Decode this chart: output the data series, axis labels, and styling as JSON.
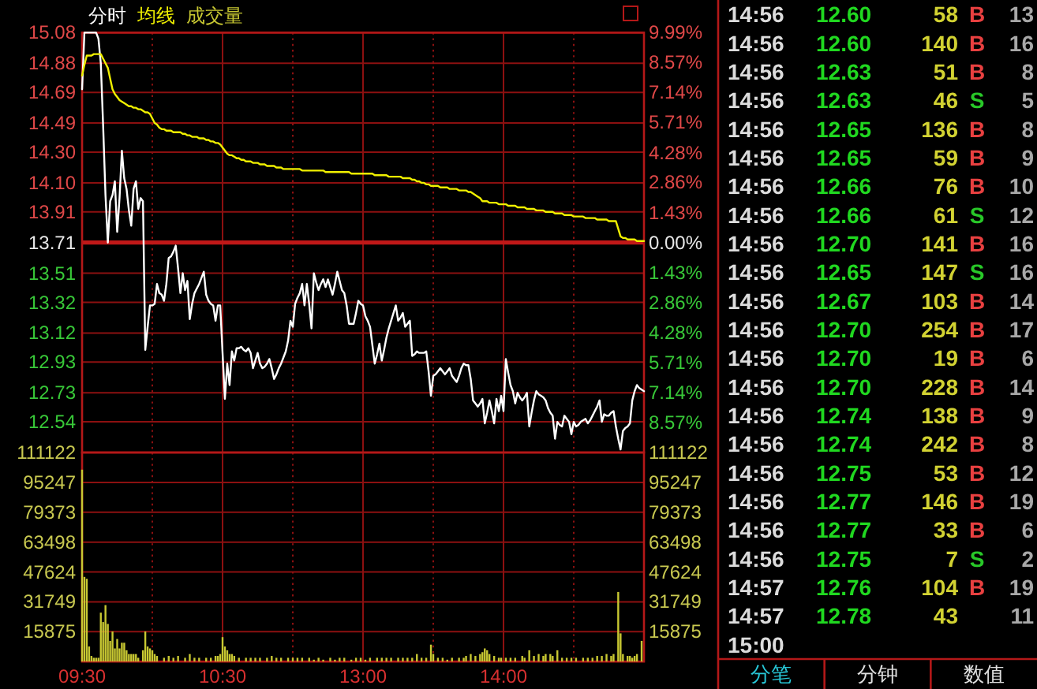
{
  "chart_data": [
    {
      "type": "line",
      "categories": [
        null,
        null,
        null,
        null,
        null,
        null,
        null,
        null,
        null,
        null,
        null,
        null,
        null,
        null,
        null,
        null,
        null,
        null,
        null,
        null,
        null,
        null,
        null,
        null,
        null,
        null,
        null,
        null,
        null,
        null,
        null,
        null,
        null,
        null,
        null,
        null,
        null,
        null,
        null,
        null,
        null,
        null,
        null,
        null,
        null,
        null,
        null,
        null,
        null,
        null,
        null,
        null,
        null,
        null,
        null,
        null,
        null,
        null,
        null,
        null,
        null,
        null,
        null,
        null,
        null,
        null,
        null,
        null,
        null,
        null,
        null,
        null,
        null,
        null,
        null,
        null,
        null,
        null,
        null,
        null,
        null,
        null,
        null,
        null,
        null,
        null,
        null,
        null,
        null,
        null,
        null,
        null,
        null,
        null,
        null,
        null,
        null,
        null,
        null,
        null,
        null,
        null,
        null,
        null,
        null,
        null,
        null,
        null,
        null,
        null,
        null,
        null,
        null,
        null,
        null,
        null,
        null,
        null,
        null,
        null,
        null,
        null,
        null,
        null,
        null,
        null,
        null,
        null,
        null,
        null,
        null,
        null,
        null,
        null,
        null,
        null,
        null,
        null,
        null,
        null,
        null,
        null,
        null,
        null,
        null,
        null,
        null,
        null,
        null,
        null,
        null,
        null,
        null,
        null,
        null,
        null,
        null,
        null,
        null,
        null,
        null,
        null,
        null,
        null,
        null,
        null,
        null,
        null,
        null,
        null,
        null,
        null,
        null,
        null,
        null,
        null,
        null,
        null,
        null,
        null,
        null,
        null,
        null,
        null,
        null,
        null,
        null,
        null,
        null,
        null,
        null,
        null,
        null,
        null,
        null,
        null,
        null,
        null,
        null,
        null,
        null,
        null,
        null,
        null,
        null,
        null,
        null,
        null,
        null,
        null,
        null,
        null,
        null,
        null,
        null,
        null,
        null,
        null,
        null,
        null,
        null,
        null,
        null,
        null,
        null,
        null,
        null,
        null,
        null,
        null,
        null,
        null,
        null,
        null,
        null,
        null,
        null,
        null,
        null,
        null,
        null
      ],
      "series": [
        {
          "name": "分时",
          "color": "#ffffff",
          "values": [
            14.71,
            15.08,
            15.08,
            15.08,
            15.08,
            15.08,
            15.08,
            15.04,
            14.88,
            14.47,
            14.02,
            13.71,
            13.98,
            14.02,
            14.11,
            13.78,
            14.0,
            14.31,
            14.13,
            14.06,
            13.92,
            13.82,
            14.06,
            14.11,
            13.93,
            14.0,
            13.98,
            13.01,
            13.16,
            13.3,
            13.3,
            13.31,
            13.44,
            13.38,
            13.37,
            13.33,
            13.44,
            13.61,
            13.62,
            13.65,
            13.69,
            13.54,
            13.38,
            13.51,
            13.4,
            13.46,
            13.21,
            13.31,
            13.38,
            13.41,
            13.44,
            13.48,
            13.52,
            13.37,
            13.33,
            13.31,
            13.3,
            13.2,
            13.3,
            13.3,
            12.99,
            12.69,
            12.92,
            12.78,
            13.0,
            12.94,
            13.02,
            13.02,
            13.03,
            13.01,
            13.0,
            13.02,
            12.99,
            12.89,
            12.94,
            12.99,
            12.92,
            12.89,
            12.9,
            12.92,
            12.95,
            12.89,
            12.82,
            12.85,
            12.89,
            12.92,
            12.96,
            13.0,
            13.07,
            13.2,
            13.16,
            13.31,
            13.35,
            13.38,
            13.44,
            13.3,
            13.44,
            13.31,
            13.15,
            13.51,
            13.45,
            13.4,
            13.44,
            13.47,
            13.42,
            13.47,
            13.42,
            13.37,
            13.44,
            13.52,
            13.46,
            13.4,
            13.38,
            13.3,
            13.18,
            13.18,
            13.18,
            13.25,
            13.33,
            13.31,
            13.3,
            13.23,
            13.2,
            13.16,
            13.04,
            12.92,
            12.98,
            13.05,
            12.94,
            13.01,
            13.09,
            13.15,
            13.2,
            13.25,
            13.3,
            13.2,
            13.22,
            13.25,
            13.16,
            13.18,
            13.2,
            12.97,
            12.98,
            13.0,
            12.99,
            12.99,
            12.99,
            13.0,
            12.87,
            12.71,
            12.84,
            12.85,
            12.87,
            12.89,
            12.87,
            12.85,
            12.87,
            12.89,
            12.84,
            12.82,
            12.8,
            12.84,
            12.89,
            12.92,
            12.91,
            12.91,
            12.82,
            12.68,
            12.66,
            12.64,
            12.66,
            12.69,
            12.53,
            12.6,
            12.68,
            12.61,
            12.53,
            12.69,
            12.61,
            12.71,
            12.61,
            12.95,
            12.86,
            12.78,
            12.74,
            12.66,
            12.73,
            12.7,
            12.68,
            12.7,
            12.73,
            12.51,
            12.6,
            12.68,
            12.74,
            12.72,
            12.71,
            12.7,
            12.68,
            12.63,
            12.6,
            12.58,
            12.43,
            12.54,
            12.52,
            12.51,
            12.58,
            12.56,
            12.54,
            12.46,
            12.54,
            12.51,
            12.52,
            12.54,
            12.55,
            12.56,
            12.53,
            12.55,
            12.58,
            12.61,
            12.64,
            12.68,
            12.54,
            12.59,
            12.58,
            12.58,
            12.6,
            12.61,
            12.51,
            12.43,
            12.36,
            12.48,
            12.5,
            12.51,
            12.53,
            12.68,
            12.74,
            12.78,
            12.76,
            12.75,
            12.74
          ]
        },
        {
          "name": "均线",
          "color": "#f0f000",
          "values": [
            14.8,
            14.87,
            14.93,
            14.93,
            14.93,
            14.94,
            14.94,
            14.94,
            14.94,
            14.91,
            14.88,
            14.85,
            14.78,
            14.71,
            14.68,
            14.66,
            14.64,
            14.63,
            14.62,
            14.61,
            14.6,
            14.6,
            14.59,
            14.59,
            14.58,
            14.58,
            14.57,
            14.56,
            14.56,
            14.55,
            14.52,
            14.49,
            14.48,
            14.46,
            14.45,
            14.45,
            14.44,
            14.44,
            14.44,
            14.43,
            14.43,
            14.43,
            14.43,
            14.42,
            14.42,
            14.41,
            14.41,
            14.4,
            14.4,
            14.4,
            14.39,
            14.39,
            14.39,
            14.38,
            14.38,
            14.37,
            14.37,
            14.36,
            14.36,
            14.35,
            14.33,
            14.31,
            14.29,
            14.28,
            14.28,
            14.27,
            14.26,
            14.26,
            14.25,
            14.25,
            14.24,
            14.24,
            14.24,
            14.23,
            14.23,
            14.23,
            14.22,
            14.22,
            14.22,
            14.21,
            14.21,
            14.21,
            14.21,
            14.2,
            14.2,
            14.2,
            14.19,
            14.19,
            14.19,
            14.19,
            14.19,
            14.19,
            14.19,
            14.19,
            14.18,
            14.18,
            14.18,
            14.18,
            14.18,
            14.18,
            14.18,
            14.18,
            14.18,
            14.18,
            14.17,
            14.17,
            14.17,
            14.17,
            14.17,
            14.17,
            14.17,
            14.17,
            14.17,
            14.17,
            14.17,
            14.16,
            14.16,
            14.16,
            14.16,
            14.16,
            14.16,
            14.16,
            14.16,
            14.16,
            14.16,
            14.15,
            14.15,
            14.15,
            14.15,
            14.15,
            14.15,
            14.14,
            14.14,
            14.14,
            14.14,
            14.14,
            14.14,
            14.13,
            14.13,
            14.13,
            14.13,
            14.12,
            14.12,
            14.11,
            14.11,
            14.1,
            14.1,
            14.09,
            14.09,
            14.08,
            14.08,
            14.08,
            14.08,
            14.07,
            14.07,
            14.07,
            14.07,
            14.06,
            14.06,
            14.06,
            14.06,
            14.05,
            14.05,
            14.05,
            14.05,
            14.04,
            14.04,
            14.03,
            14.02,
            14.01,
            14.0,
            13.98,
            13.98,
            13.98,
            13.97,
            13.97,
            13.97,
            13.97,
            13.96,
            13.96,
            13.96,
            13.96,
            13.95,
            13.95,
            13.95,
            13.95,
            13.94,
            13.94,
            13.94,
            13.94,
            13.93,
            13.93,
            13.93,
            13.93,
            13.92,
            13.92,
            13.92,
            13.92,
            13.91,
            13.91,
            13.91,
            13.91,
            13.9,
            13.9,
            13.9,
            13.9,
            13.89,
            13.89,
            13.89,
            13.89,
            13.88,
            13.88,
            13.88,
            13.88,
            13.88,
            13.87,
            13.87,
            13.87,
            13.87,
            13.87,
            13.86,
            13.86,
            13.86,
            13.86,
            13.86,
            13.85,
            13.85,
            13.85,
            13.85,
            13.8,
            13.75,
            13.74,
            13.74,
            13.73,
            13.73,
            13.73,
            13.73,
            13.72,
            13.72,
            13.72,
            13.72
          ]
        }
      ],
      "ylim": [
        12.34,
        15.08
      ],
      "yticks": [
        15.08,
        14.88,
        14.69,
        14.49,
        {
          "value": 14.3,
          "label": "14.30"
        },
        {
          "value": 14.1,
          "label": "14.10"
        },
        13.91,
        13.71,
        13.51,
        13.32,
        13.12,
        12.93,
        12.73,
        12.54
      ],
      "y2lim": [
        -9.99,
        9.99
      ],
      "y2ticks": [
        {
          "value": 9.99,
          "label": "9.99%"
        },
        {
          "value": 8.57,
          "label": "8.57%"
        },
        {
          "value": 7.14,
          "label": "7.14%"
        },
        {
          "value": 5.71,
          "label": "5.71%"
        },
        {
          "value": 4.28,
          "label": "4.28%"
        },
        {
          "value": 2.86,
          "label": "2.86%"
        },
        {
          "value": 1.43,
          "label": "1.43%"
        },
        {
          "value": 0,
          "label": "0.00%"
        },
        {
          "value": -1.43,
          "label": "1.43%"
        },
        {
          "value": -2.86,
          "label": "2.86%"
        },
        {
          "value": -4.28,
          "label": "4.28%"
        },
        {
          "value": -5.71,
          "label": "5.71%"
        },
        {
          "value": -7.14,
          "label": "7.14%"
        },
        {
          "value": -8.57,
          "label": "8.57%"
        }
      ],
      "ref_lines": [
        {
          "axis": "y",
          "value": 13.71,
          "color": "#c01818"
        }
      ],
      "grid": true,
      "legend": "top left"
    },
    {
      "type": "bar",
      "categories": [
        "09:30",
        null,
        null,
        null,
        null,
        null,
        null,
        null,
        null,
        null,
        null,
        null,
        null,
        null,
        null,
        null,
        null,
        null,
        null,
        null,
        null,
        null,
        null,
        null,
        null,
        null,
        null,
        null,
        null,
        null,
        null,
        null,
        null,
        null,
        null,
        null,
        null,
        null,
        null,
        null,
        null,
        null,
        null,
        null,
        null,
        null,
        null,
        null,
        null,
        null,
        null,
        null,
        null,
        null,
        null,
        null,
        null,
        null,
        null,
        null,
        "10:30",
        null,
        null,
        null,
        null,
        null,
        null,
        null,
        null,
        null,
        null,
        null,
        null,
        null,
        null,
        null,
        null,
        null,
        null,
        null,
        null,
        null,
        null,
        null,
        null,
        null,
        null,
        null,
        null,
        null,
        null,
        null,
        null,
        null,
        null,
        null,
        null,
        null,
        null,
        null,
        null,
        null,
        null,
        null,
        null,
        null,
        null,
        null,
        null,
        null,
        null,
        null,
        null,
        null,
        null,
        null,
        null,
        null,
        null,
        null,
        "13:00",
        null,
        null,
        null,
        null,
        null,
        null,
        null,
        null,
        null,
        null,
        null,
        null,
        null,
        null,
        null,
        null,
        null,
        null,
        null,
        null,
        null,
        null,
        null,
        null,
        null,
        null,
        null,
        null,
        null,
        null,
        null,
        null,
        null,
        null,
        null,
        null,
        null,
        null,
        null,
        null,
        null,
        null,
        null,
        null,
        null,
        null,
        null,
        null,
        null,
        null,
        null,
        null,
        null,
        null,
        null,
        null,
        null,
        null,
        null,
        "14:00",
        null,
        null,
        null,
        null,
        null,
        null,
        null,
        null,
        null,
        null,
        null,
        null,
        null,
        null,
        null,
        null,
        null,
        null,
        null,
        null,
        null,
        null,
        null,
        null,
        null,
        null,
        null,
        null,
        null,
        null,
        null,
        null,
        null,
        null,
        null,
        null,
        null,
        null,
        null,
        null,
        null,
        null,
        null,
        null,
        null,
        null,
        null,
        null,
        null,
        null,
        null,
        null,
        null,
        null,
        null,
        null,
        null,
        null,
        null,
        null
      ],
      "series": [
        {
          "name": "成交量",
          "color": "#c8c832",
          "values": [
            102000,
            45000,
            44000,
            8000,
            3000,
            2000,
            2000,
            2000,
            26000,
            21000,
            30000,
            20000,
            11000,
            16000,
            7000,
            12000,
            7000,
            10000,
            10000,
            6000,
            4000,
            4000,
            4000,
            4000,
            2000,
            null,
            6000,
            16000,
            8000,
            7000,
            6000,
            4000,
            3000,
            null,
            null,
            2000,
            null,
            3000,
            null,
            2000,
            null,
            3000,
            null,
            null,
            2000,
            null,
            4000,
            null,
            2000,
            null,
            2000,
            null,
            null,
            2000,
            null,
            2000,
            null,
            3000,
            3000,
            4000,
            13000,
            8000,
            6000,
            4000,
            4000,
            3000,
            null,
            2000,
            null,
            null,
            2000,
            null,
            2000,
            null,
            2000,
            null,
            2000,
            null,
            null,
            2000,
            null,
            3000,
            null,
            2000,
            null,
            2000,
            null,
            null,
            2000,
            null,
            2000,
            null,
            2000,
            null,
            2000,
            null,
            null,
            2000,
            null,
            1000,
            null,
            2000,
            null,
            1000,
            null,
            null,
            2000,
            null,
            1000,
            null,
            2000,
            null,
            2000,
            null,
            null,
            1000,
            null,
            2000,
            null,
            2000,
            null,
            1000,
            null,
            2000,
            null,
            null,
            2000,
            null,
            2000,
            null,
            2000,
            null,
            2000,
            null,
            null,
            2000,
            null,
            2000,
            null,
            2000,
            null,
            2000,
            null,
            4000,
            null,
            2000,
            null,
            2000,
            null,
            9000,
            4000,
            null,
            2000,
            null,
            2000,
            null,
            1000,
            null,
            2000,
            null,
            null,
            2000,
            null,
            2000,
            3000,
            null,
            4000,
            null,
            3000,
            null,
            4000,
            5000,
            7000,
            6000,
            4000,
            null,
            3000,
            null,
            2000,
            2000,
            null,
            2000,
            null,
            2000,
            null,
            2000,
            null,
            null,
            3000,
            2000,
            null,
            6000,
            null,
            3000,
            null,
            4000,
            null,
            3000,
            4000,
            null,
            4000,
            3000,
            null,
            6000,
            null,
            2000,
            null,
            2000,
            null,
            2000,
            null,
            2000,
            null,
            null,
            2000,
            null,
            2000,
            null,
            2000,
            null,
            3000,
            null,
            3000,
            null,
            4000,
            null,
            3000,
            4000,
            null,
            37000,
            15000,
            4000,
            null,
            3000,
            3000,
            2000,
            3000,
            4000,
            null,
            11000,
            null
          ]
        }
      ],
      "ylim": [
        0,
        111122
      ],
      "yticks": [
        111122,
        95247,
        79373,
        63498,
        47624,
        31749,
        15875
      ],
      "y2lim": [
        0,
        111122
      ],
      "y2ticks": [
        111122,
        95247,
        79373,
        63498,
        47624,
        31749,
        15875
      ],
      "grid": true,
      "legend": "top left"
    },
    {
      "type": "other",
      "data_labels": true,
      "categories": [
        "14:56",
        "14:56",
        "14:56",
        "14:56",
        "14:56",
        "14:56",
        "14:56",
        "14:56",
        "14:56",
        "14:56",
        "14:56",
        "14:56",
        "14:56",
        "14:56",
        "14:56",
        "14:56",
        "14:56",
        "14:56",
        "14:56",
        "14:56",
        "14:57",
        "14:57",
        "15:00"
      ],
      "series": [
        {
          "color": "#20d820",
          "values": [
            null,
            null,
            null,
            null,
            null,
            null,
            null,
            null,
            null,
            null,
            null,
            null,
            null,
            null,
            null,
            null,
            null,
            null,
            null,
            null,
            null,
            null,
            null
          ],
          "value_labels": [
            "12.60",
            "12.60",
            "12.63",
            "12.63",
            "12.65",
            "12.65",
            "12.66",
            "12.66",
            "12.70",
            "12.65",
            "12.67",
            "12.70",
            "12.70",
            "12.70",
            "12.74",
            "12.74",
            "12.75",
            "12.77",
            "12.77",
            "12.75",
            "12.76",
            "12.78",
            null
          ]
        },
        {
          "color": "#d2d232",
          "values": [
            58,
            140,
            51,
            46,
            136,
            59,
            76,
            61,
            141,
            147,
            103,
            254,
            19,
            228,
            138,
            242,
            53,
            146,
            33,
            7,
            104,
            43,
            null
          ]
        },
        {
          "values": [
            null,
            null,
            null,
            null,
            null,
            null,
            null,
            null,
            null,
            null,
            null,
            null,
            null,
            null,
            null,
            null,
            null,
            null,
            null,
            null,
            null,
            null,
            null
          ],
          "value_labels": [
            "B",
            "B",
            "B",
            "S",
            "B",
            "B",
            "B",
            "S",
            "B",
            "S",
            "B",
            "B",
            "B",
            "B",
            "B",
            "B",
            "B",
            "B",
            "B",
            "S",
            "B",
            null,
            null
          ],
          "colors": [
            "#e84040",
            "#e84040",
            "#e84040",
            "#28c828",
            "#e84040",
            "#e84040",
            "#e84040",
            "#28c828",
            "#e84040",
            "#28c828",
            "#e84040",
            "#e84040",
            "#e84040",
            "#e84040",
            "#e84040",
            "#e84040",
            "#e84040",
            "#e84040",
            "#e84040",
            "#28c828",
            "#e84040",
            null,
            null
          ]
        },
        {
          "color": "#a8a8a8",
          "values": [
            13,
            16,
            8,
            5,
            8,
            9,
            10,
            12,
            16,
            16,
            14,
            17,
            6,
            14,
            9,
            8,
            12,
            19,
            6,
            2,
            19,
            11,
            null
          ]
        }
      ],
      "annotations": [
        "分笔",
        "分钟",
        "数值"
      ]
    }
  ]
}
